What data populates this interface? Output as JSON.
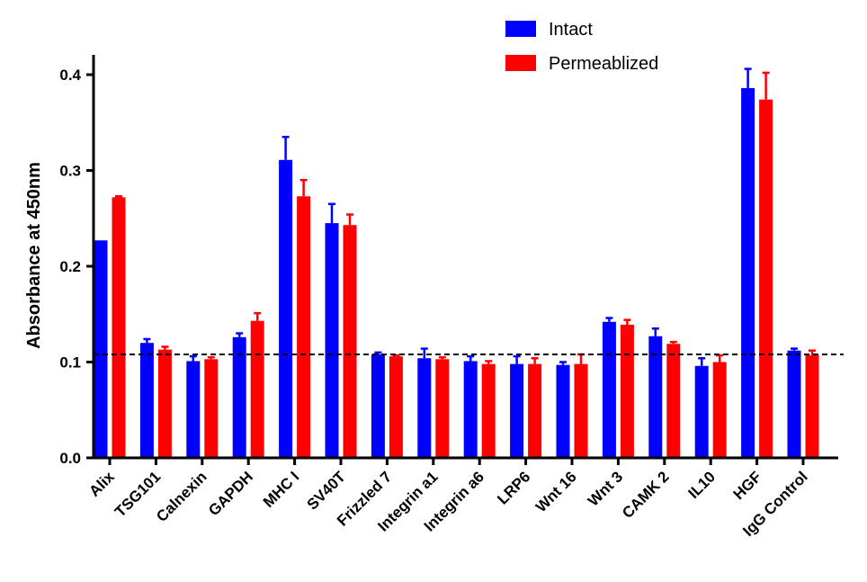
{
  "chart_data": {
    "type": "bar",
    "ylabel": "Absorbance at 450nm",
    "xlabel": "",
    "ylim": [
      0,
      0.42
    ],
    "yticks": [
      "0.0",
      "0.1",
      "0.2",
      "0.3",
      "0.4"
    ],
    "legend_position": "top-right",
    "grid": false,
    "reference_line": {
      "y": 0.108,
      "style": "dashed",
      "color": "#000000"
    },
    "categories": [
      "Alix",
      "TSG101",
      "Calnexin",
      "GAPDH",
      "MHC I",
      "SV40T",
      "Frizzled 7",
      "Integrin a1",
      "Integrin a6",
      "LRP6",
      "Wnt 16",
      "Wnt 3",
      "CAMK 2",
      "IL10",
      "HGF",
      "IgG Control"
    ],
    "series": [
      {
        "name": "Intact",
        "color": "#0000ff",
        "values": [
          0.227,
          0.12,
          0.101,
          0.126,
          0.311,
          0.245,
          0.108,
          0.104,
          0.101,
          0.098,
          0.097,
          0.142,
          0.127,
          0.096,
          0.386,
          0.112
        ],
        "errors": [
          0.0,
          0.004,
          0.005,
          0.004,
          0.024,
          0.02,
          0.002,
          0.01,
          0.005,
          0.008,
          0.003,
          0.004,
          0.008,
          0.008,
          0.02,
          0.002
        ]
      },
      {
        "name": "Permeablized",
        "color": "#ff0000",
        "values": [
          0.272,
          0.113,
          0.103,
          0.143,
          0.273,
          0.243,
          0.106,
          0.103,
          0.098,
          0.098,
          0.098,
          0.139,
          0.119,
          0.1,
          0.374,
          0.107
        ],
        "errors": [
          0.001,
          0.003,
          0.002,
          0.008,
          0.017,
          0.011,
          0.001,
          0.002,
          0.003,
          0.006,
          0.01,
          0.005,
          0.002,
          0.007,
          0.028,
          0.005
        ]
      }
    ]
  }
}
